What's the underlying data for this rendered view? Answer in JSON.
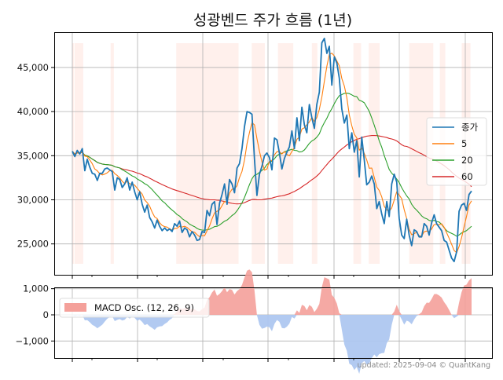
{
  "chart_data": [
    {
      "type": "line",
      "title": "성광벤드 주가 흐름 (1년)",
      "xlabel": "",
      "ylabel": "",
      "ylim": [
        21500,
        49000
      ],
      "yticks": [
        25000,
        30000,
        35000,
        40000,
        45000
      ],
      "ytick_labels": [
        "25,000",
        "30,000",
        "35,000",
        "40,000",
        "45,000"
      ],
      "x_range": [
        0,
        270
      ],
      "grid": true,
      "legend_position": "center-right",
      "highlight_bands": [
        [
          0,
          1
        ],
        [
          2,
          10
        ],
        [
          35,
          38
        ],
        [
          95,
          152
        ],
        [
          164,
          176
        ],
        [
          188,
          202
        ],
        [
          219,
          224
        ],
        [
          257,
          264
        ],
        [
          271,
          281
        ],
        [
          308,
          330
        ],
        [
          336,
          341
        ],
        [
          356,
          364
        ]
      ],
      "close_values": [
        35500,
        34900,
        35600,
        35200,
        35800,
        33300,
        34600,
        33700,
        33000,
        32900,
        32200,
        33000,
        33000,
        33500,
        33600,
        33400,
        33200,
        31100,
        32500,
        32300,
        31400,
        31800,
        32500,
        31100,
        32000,
        30900,
        30000,
        30900,
        29500,
        28600,
        29400,
        28000,
        27500,
        26800,
        27700,
        27000,
        26500,
        26800,
        26500,
        26700,
        26400,
        27300,
        27000,
        27600,
        26300,
        26800,
        26600,
        25800,
        26400,
        26000,
        25400,
        25500,
        26400,
        26300,
        28800,
        28200,
        29500,
        29800,
        27200,
        29600,
        30600,
        31800,
        29500,
        32300,
        31800,
        30800,
        33600,
        34100,
        35800,
        38300,
        40000,
        39900,
        39700,
        34600,
        30500,
        32900,
        33800,
        35000,
        35300,
        34800,
        33400,
        37000,
        36800,
        35300,
        33500,
        34700,
        35400,
        36000,
        37800,
        35800,
        39300,
        36700,
        40500,
        38500,
        37600,
        40800,
        39300,
        38100,
        40800,
        42200,
        47800,
        48300,
        46600,
        47400,
        43000,
        46200,
        45500,
        43800,
        40300,
        38700,
        39600,
        35800,
        37600,
        35400,
        36700,
        32600,
        37100,
        34500,
        31700,
        32000,
        32700,
        31800,
        29000,
        29800,
        28400,
        27300,
        29800,
        28100,
        31800,
        32900,
        32000,
        27900,
        26000,
        25600,
        27800,
        26000,
        24800,
        26600,
        26400,
        25800,
        25800,
        27300,
        27000,
        26000,
        27400,
        28300,
        27300,
        26900,
        26500,
        25400,
        25200,
        24300,
        23400,
        23000,
        24100,
        28700,
        29400,
        29600,
        28800,
        30600,
        31000
      ],
      "series": [
        {
          "name": "종가",
          "color": "#1f77b4",
          "values": []
        },
        {
          "name": "5",
          "color": "#ff7f0e",
          "window": 5,
          "values": []
        },
        {
          "name": "20",
          "color": "#2ca02c",
          "window": 20,
          "values": []
        },
        {
          "name": "60",
          "color": "#d62728",
          "window": 60,
          "values": []
        }
      ]
    },
    {
      "type": "area",
      "ylim": [
        -1650,
        1050
      ],
      "yticks": [
        -1000,
        0,
        1000
      ],
      "ytick_labels": [
        "−1,000",
        "0",
        "1,000"
      ],
      "legend_position": "top-left",
      "series": [
        {
          "name": "MACD Osc. (12, 26, 9)",
          "positive_color": "#f4a09a",
          "negative_color": "#aec7f0",
          "values": []
        }
      ]
    }
  ],
  "footer": {
    "updated": "updated: 2025-09-04 © QuantKang"
  }
}
